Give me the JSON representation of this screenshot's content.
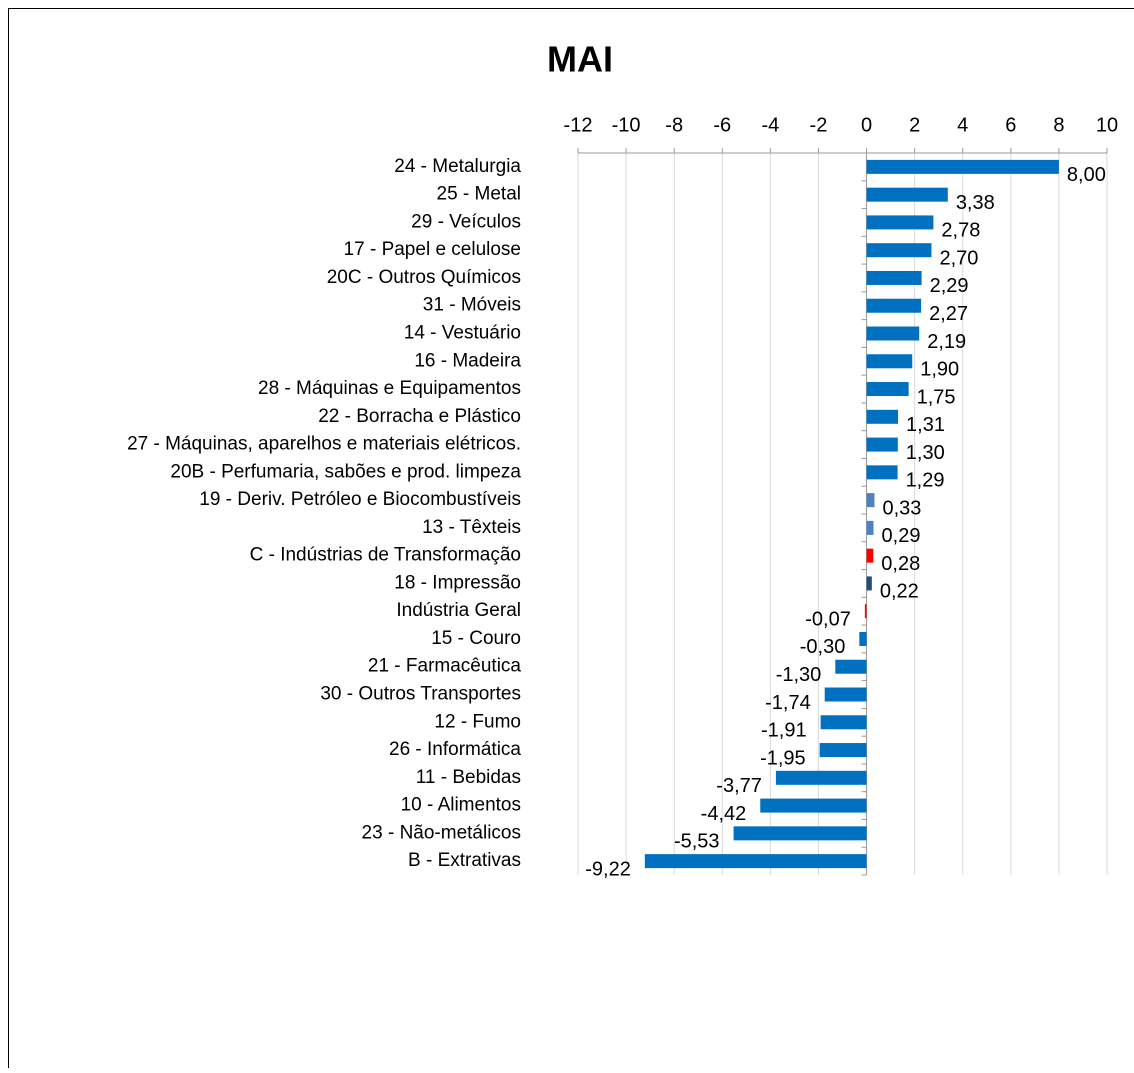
{
  "chart_data": {
    "type": "hbar",
    "title": "MAI",
    "categories": [
      "24 - Metalurgia",
      "25 - Metal",
      "29 - Veículos",
      "17 - Papel e celulose",
      "20C - Outros Químicos",
      "31 - Móveis",
      "14 - Vestuário",
      "16 - Madeira",
      "28 - Máquinas e Equipamentos",
      "22 - Borracha e Plástico",
      "27 - Máquinas, aparelhos e materiais elétricos.",
      "20B - Perfumaria, sabões e prod. limpeza",
      "19 - Deriv. Petróleo e Biocombustíveis",
      "13 - Têxteis",
      "C - Indústrias de Transformação",
      "18 - Impressão",
      "Indústria Geral",
      "15 - Couro",
      "21 - Farmacêutica",
      "30 - Outros Transportes",
      "12 - Fumo",
      "26 - Informática",
      "11 - Bebidas",
      "10 - Alimentos",
      "23 - Não-metálicos",
      "B - Extrativas"
    ],
    "values": [
      8.0,
      3.38,
      2.78,
      2.7,
      2.29,
      2.27,
      2.19,
      1.9,
      1.75,
      1.31,
      1.3,
      1.29,
      0.33,
      0.29,
      0.28,
      0.22,
      -0.07,
      -0.3,
      -1.3,
      -1.74,
      -1.91,
      -1.95,
      -3.77,
      -4.42,
      -5.53,
      -9.22
    ],
    "value_labels": [
      "8,00",
      "3,38",
      "2,78",
      "2,70",
      "2,29",
      "2,27",
      "2,19",
      "1,90",
      "1,75",
      "1,31",
      "1,30",
      "1,29",
      "0,33",
      "0,29",
      "0,28",
      "0,22",
      "-0,07",
      "-0,30",
      "-1,30",
      "-1,74",
      "-1,91",
      "-1,95",
      "-3,77",
      "-4,42",
      "-5,53",
      "-9,22"
    ],
    "colors": [
      "#0070c0",
      "#0070c0",
      "#0070c0",
      "#0070c0",
      "#0070c0",
      "#0070c0",
      "#0070c0",
      "#0070c0",
      "#0070c0",
      "#0070c0",
      "#0070c0",
      "#0070c0",
      "#4f81bd",
      "#4f81bd",
      "#ff0000",
      "#1f4e79",
      "#ff0000",
      "#0070c0",
      "#0070c0",
      "#0070c0",
      "#0070c0",
      "#0070c0",
      "#0070c0",
      "#0070c0",
      "#0070c0",
      "#0070c0"
    ],
    "xlim": [
      -12,
      10
    ],
    "xticks": [
      -12,
      -10,
      -8,
      -6,
      -4,
      -2,
      0,
      2,
      4,
      6,
      8,
      10
    ],
    "grid": true
  }
}
